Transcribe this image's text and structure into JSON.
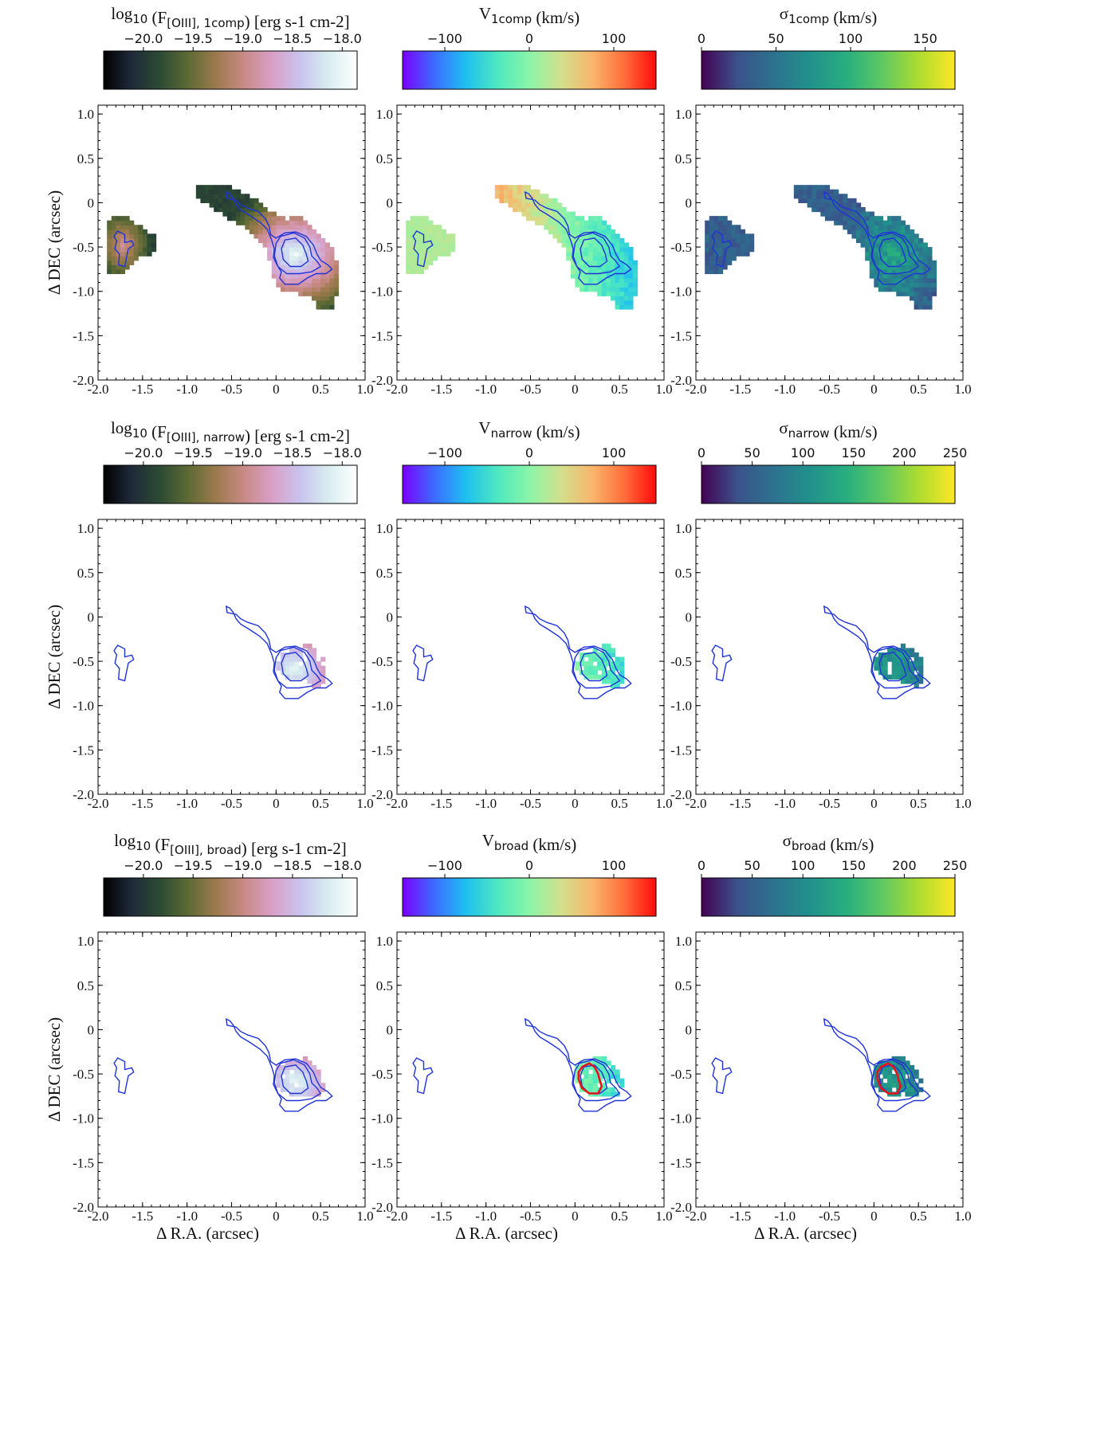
{
  "chart_data": {
    "type": "heatmap",
    "description_units": "arcsec",
    "xlim": [
      -2.0,
      1.0
    ],
    "ylim": [
      -2.0,
      1.1
    ],
    "x_ticks": [
      "-2.0",
      "-1.5",
      "-1.0",
      "-0.5",
      "0",
      "0.5",
      "1.0"
    ],
    "y_ticks": [
      "1.0",
      "0.5",
      "0",
      "-0.5",
      "-1.0",
      "-1.5",
      "-2.0"
    ],
    "xlabel": "Δ R.A. (arcsec)",
    "ylabel": "Δ DEC (arcsec)",
    "contour_color": "#1f33d6",
    "outline_color": "#e8121a",
    "colormaps": {
      "flux": [
        "#000000",
        "#1f2a3a",
        "#2c4a33",
        "#5d6a34",
        "#9c7a4d",
        "#c98a86",
        "#d9a0c8",
        "#c8c4ee",
        "#d9eef0",
        "#ffffff"
      ],
      "velocity": [
        "#7a00ff",
        "#3d6bff",
        "#1ec0f0",
        "#4ee8c0",
        "#8af5a8",
        "#d2e08c",
        "#f9b56b",
        "#ff6d3a",
        "#ff0a0a"
      ],
      "sigma": [
        "#440154",
        "#3b528b",
        "#2c728e",
        "#21918c",
        "#28ae80",
        "#5ec962",
        "#addc30",
        "#fde725"
      ]
    },
    "rows": [
      {
        "name": "1comp",
        "panels": [
          {
            "kind": "flux",
            "title": "log10 (F[OIII], 1comp) [erg s-1 cm-2]",
            "cbar_range": [
              -20.4,
              -17.85
            ],
            "cbar_ticks": [
              "−20.0",
              "−19.5",
              "−19.0",
              "−18.5",
              "−18.0"
            ],
            "cbar_tick_values": [
              -20.0,
              -19.5,
              -19.0,
              -18.5,
              -18.0
            ]
          },
          {
            "kind": "velocity",
            "title": "V1comp (km/s)",
            "cbar_range": [
              -150,
              150
            ],
            "cbar_ticks": [
              "−100",
              "0",
              "100"
            ],
            "cbar_tick_values": [
              -100,
              0,
              100
            ]
          },
          {
            "kind": "sigma",
            "title": "σ1comp (km/s)",
            "cbar_range": [
              0,
              170
            ],
            "cbar_ticks": [
              "0",
              "50",
              "100",
              "150"
            ],
            "cbar_tick_values": [
              0,
              50,
              100,
              150
            ]
          }
        ]
      },
      {
        "name": "narrow",
        "panels": [
          {
            "kind": "flux",
            "title": "log10 (F[OIII], narrow) [erg s-1 cm-2]",
            "cbar_range": [
              -20.4,
              -17.85
            ],
            "cbar_ticks": [
              "−20.0",
              "−19.5",
              "−19.0",
              "−18.5",
              "−18.0"
            ],
            "cbar_tick_values": [
              -20.0,
              -19.5,
              -19.0,
              -18.5,
              -18.0
            ]
          },
          {
            "kind": "velocity",
            "title": "Vnarrow (km/s)",
            "cbar_range": [
              -150,
              150
            ],
            "cbar_ticks": [
              "−100",
              "0",
              "100"
            ],
            "cbar_tick_values": [
              -100,
              0,
              100
            ]
          },
          {
            "kind": "sigma",
            "title": "σnarrow (km/s)",
            "cbar_range": [
              0,
              250
            ],
            "cbar_ticks": [
              "0",
              "50",
              "100",
              "150",
              "200",
              "250"
            ],
            "cbar_tick_values": [
              0,
              50,
              100,
              150,
              200,
              250
            ]
          }
        ]
      },
      {
        "name": "broad",
        "panels": [
          {
            "kind": "flux",
            "title": "log10 (F[OIII], broad) [erg s-1 cm-2]",
            "cbar_range": [
              -20.4,
              -17.85
            ],
            "cbar_ticks": [
              "−20.0",
              "−19.5",
              "−19.0",
              "−18.5",
              "−18.0"
            ],
            "cbar_tick_values": [
              -20.0,
              -19.5,
              -19.0,
              -18.5,
              -18.0
            ]
          },
          {
            "kind": "velocity",
            "title": "Vbroad (km/s)",
            "cbar_range": [
              -150,
              150
            ],
            "cbar_ticks": [
              "−100",
              "0",
              "100"
            ],
            "cbar_tick_values": [
              -100,
              0,
              100
            ]
          },
          {
            "kind": "sigma",
            "title": "σbroad (km/s)",
            "cbar_range": [
              0,
              250
            ],
            "cbar_ticks": [
              "0",
              "50",
              "100",
              "150",
              "200",
              "250"
            ],
            "cbar_tick_values": [
              0,
              50,
              100,
              150,
              200,
              250
            ]
          }
        ]
      }
    ],
    "contours_arcsec": {
      "west_blob": [
        [
          -1.78,
          -0.32
        ],
        [
          -1.7,
          -0.36
        ],
        [
          -1.7,
          -0.45
        ],
        [
          -1.62,
          -0.43
        ],
        [
          -1.6,
          -0.48
        ],
        [
          -1.66,
          -0.52
        ],
        [
          -1.68,
          -0.62
        ],
        [
          -1.7,
          -0.72
        ],
        [
          -1.77,
          -0.7
        ],
        [
          -1.76,
          -0.58
        ],
        [
          -1.81,
          -0.52
        ],
        [
          -1.79,
          -0.43
        ],
        [
          -1.82,
          -0.38
        ]
      ],
      "outer": [
        [
          -0.56,
          0.12
        ],
        [
          -0.55,
          0.05
        ],
        [
          -0.45,
          0.03
        ],
        [
          -0.4,
          -0.02
        ],
        [
          -0.32,
          -0.06
        ],
        [
          -0.2,
          -0.1
        ],
        [
          -0.12,
          -0.18
        ],
        [
          -0.08,
          -0.26
        ],
        [
          -0.06,
          -0.36
        ],
        [
          0.0,
          -0.4
        ],
        [
          0.1,
          -0.34
        ],
        [
          0.22,
          -0.33
        ],
        [
          0.34,
          -0.38
        ],
        [
          0.42,
          -0.48
        ],
        [
          0.46,
          -0.58
        ],
        [
          0.5,
          -0.65
        ],
        [
          0.58,
          -0.7
        ],
        [
          0.63,
          -0.75
        ],
        [
          0.56,
          -0.8
        ],
        [
          0.45,
          -0.8
        ],
        [
          0.35,
          -0.85
        ],
        [
          0.25,
          -0.92
        ],
        [
          0.1,
          -0.92
        ],
        [
          0.04,
          -0.85
        ],
        [
          0.06,
          -0.78
        ],
        [
          0.02,
          -0.72
        ],
        [
          -0.03,
          -0.62
        ],
        [
          -0.02,
          -0.52
        ],
        [
          -0.05,
          -0.42
        ],
        [
          -0.1,
          -0.3
        ],
        [
          -0.18,
          -0.22
        ],
        [
          -0.3,
          -0.14
        ],
        [
          -0.4,
          -0.08
        ],
        [
          -0.45,
          -0.02
        ],
        [
          -0.48,
          0.05
        ],
        [
          -0.52,
          0.1
        ]
      ],
      "middle": [
        [
          0.05,
          -0.38
        ],
        [
          0.2,
          -0.34
        ],
        [
          0.32,
          -0.4
        ],
        [
          0.38,
          -0.5
        ],
        [
          0.4,
          -0.6
        ],
        [
          0.46,
          -0.66
        ],
        [
          0.5,
          -0.72
        ],
        [
          0.4,
          -0.78
        ],
        [
          0.26,
          -0.8
        ],
        [
          0.12,
          -0.8
        ],
        [
          0.02,
          -0.72
        ],
        [
          -0.02,
          -0.6
        ],
        [
          0.0,
          -0.46
        ]
      ],
      "inner": [
        [
          0.1,
          -0.42
        ],
        [
          0.22,
          -0.4
        ],
        [
          0.3,
          -0.48
        ],
        [
          0.34,
          -0.58
        ],
        [
          0.36,
          -0.66
        ],
        [
          0.28,
          -0.72
        ],
        [
          0.16,
          -0.72
        ],
        [
          0.08,
          -0.64
        ],
        [
          0.06,
          -0.52
        ]
      ],
      "broad_outline": [
        [
          0.08,
          -0.42
        ],
        [
          0.16,
          -0.38
        ],
        [
          0.22,
          -0.42
        ],
        [
          0.26,
          -0.5
        ],
        [
          0.28,
          -0.58
        ],
        [
          0.3,
          -0.64
        ],
        [
          0.26,
          -0.72
        ],
        [
          0.16,
          -0.72
        ],
        [
          0.08,
          -0.66
        ],
        [
          0.04,
          -0.56
        ],
        [
          0.04,
          -0.48
        ]
      ]
    }
  }
}
